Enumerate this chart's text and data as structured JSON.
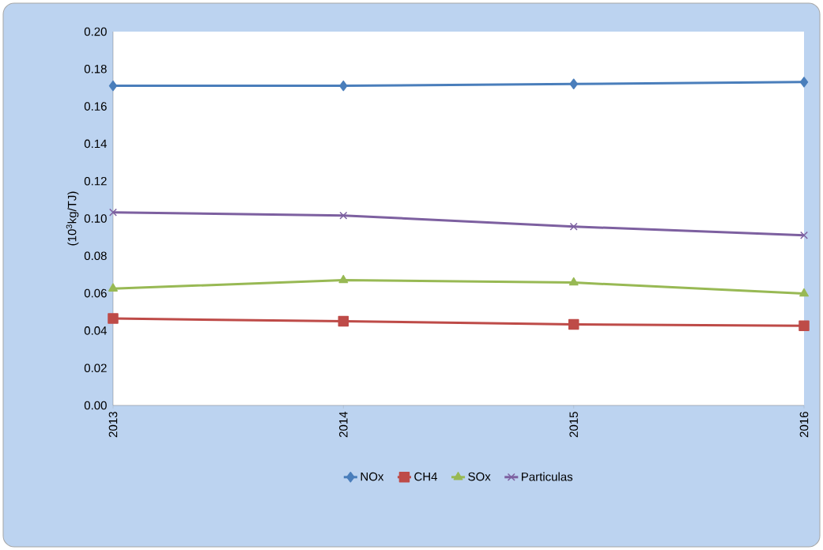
{
  "chart_data": {
    "type": "line",
    "ylabel": "(10$^{3}$kg/TJ)",
    "categories": [
      "2013",
      "2014",
      "2015",
      "2016"
    ],
    "series": [
      {
        "name": "NOx",
        "color": "#4a7ebb",
        "marker": "diamond",
        "values": [
          0.171,
          0.171,
          0.172,
          0.173
        ]
      },
      {
        "name": "CH4",
        "color": "#be4b48",
        "marker": "square",
        "values": [
          0.0465,
          0.045,
          0.0433,
          0.0426
        ]
      },
      {
        "name": "SOx",
        "color": "#98b954",
        "marker": "triangle",
        "values": [
          0.0625,
          0.067,
          0.0657,
          0.0598
        ]
      },
      {
        "name": "Particulas",
        "color": "#7d60a0",
        "marker": "cross",
        "values": [
          0.1033,
          0.1016,
          0.0957,
          0.091
        ]
      }
    ],
    "ylim": [
      0,
      0.2
    ],
    "yticks": [
      {
        "value": 0,
        "label": "0.00"
      },
      {
        "value": 0.02,
        "label": "0.02"
      },
      {
        "value": 0.04,
        "label": "0.04"
      },
      {
        "value": 0.06,
        "label": "0.06"
      },
      {
        "value": 0.08,
        "label": "0.08"
      },
      {
        "value": 0.1,
        "label": "0.10"
      },
      {
        "value": 0.12,
        "label": "0.12"
      },
      {
        "value": 0.14,
        "label": "0.14"
      },
      {
        "value": 0.16,
        "label": "0.16"
      },
      {
        "value": 0.18,
        "label": "0.18"
      },
      {
        "value": 0.2,
        "label": "0.20"
      }
    ],
    "legend": "bottom",
    "grid": false,
    "line_style": "solid"
  }
}
